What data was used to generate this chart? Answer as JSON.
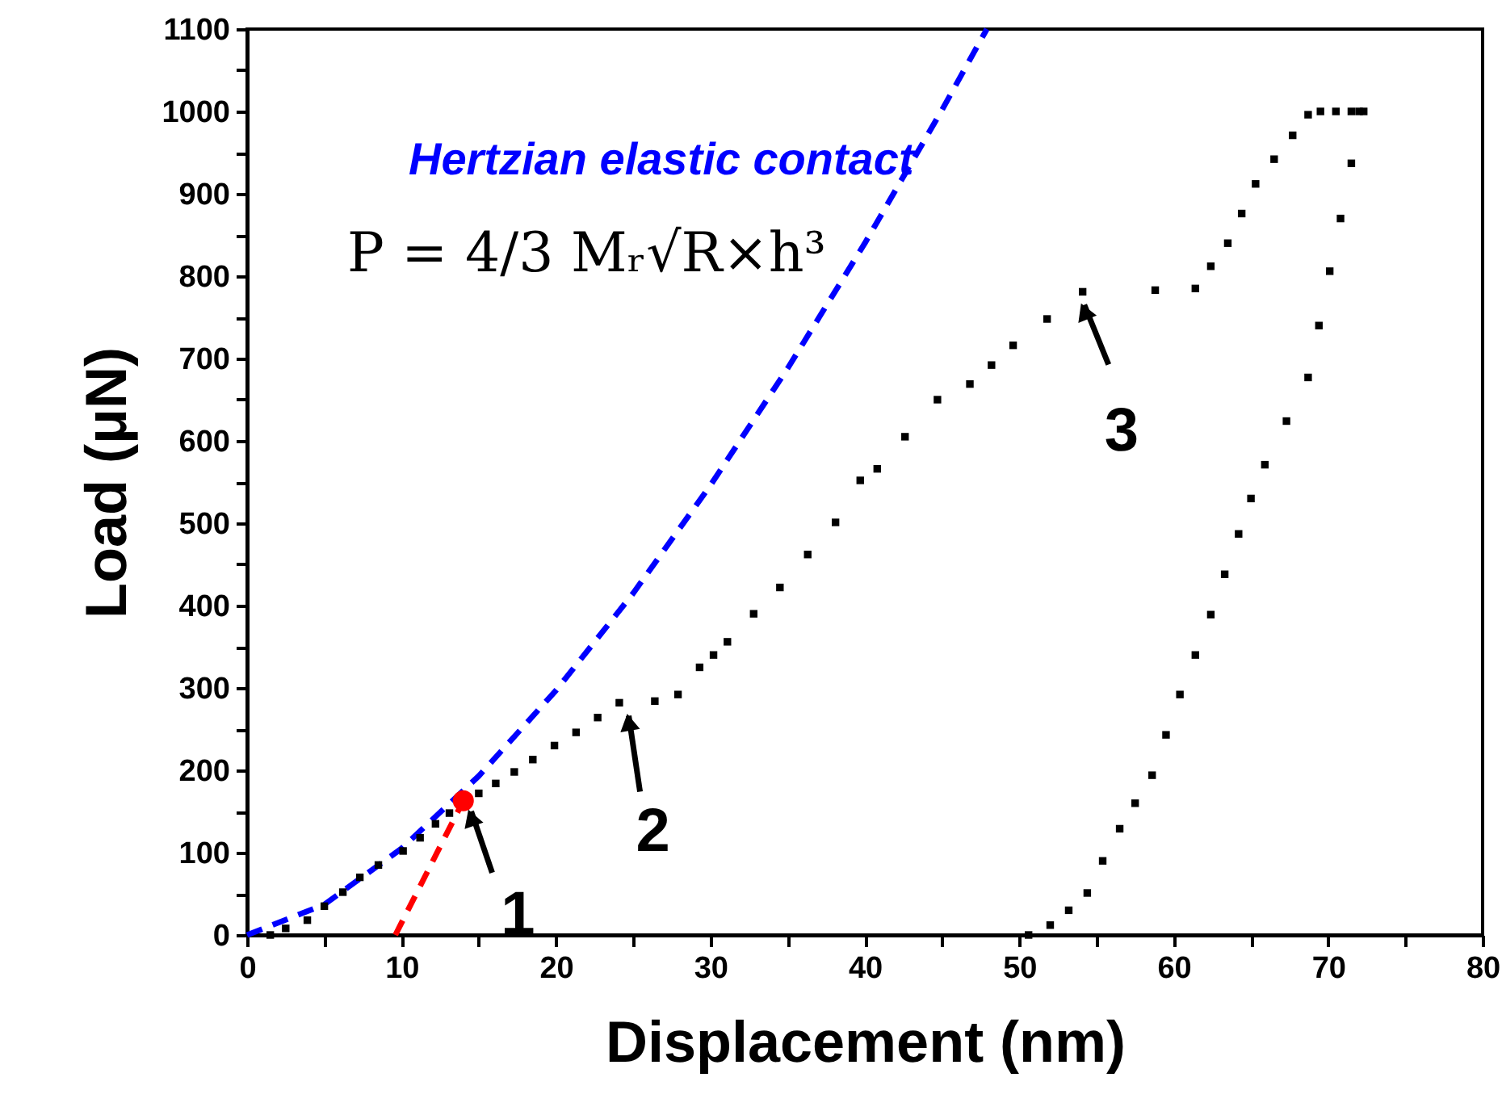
{
  "chart_data": {
    "type": "scatter",
    "xlabel": "Displacement (nm)",
    "ylabel": "Load (μN)",
    "xlim": [
      0,
      80
    ],
    "ylim": [
      0,
      1100
    ],
    "xticks": [
      0,
      {
        "value": 5,
        "label": null
      },
      10,
      {
        "value": 15,
        "label": null
      },
      20,
      {
        "value": 25,
        "label": null
      },
      30,
      {
        "value": 35,
        "label": null
      },
      40,
      {
        "value": 45,
        "label": null
      },
      50,
      {
        "value": 55,
        "label": null
      },
      60,
      {
        "value": 65,
        "label": null
      },
      70,
      {
        "value": 75,
        "label": null
      },
      80
    ],
    "yticks": [
      0,
      {
        "value": 50,
        "label": null
      },
      100,
      {
        "value": 150,
        "label": null
      },
      200,
      {
        "value": 250,
        "label": null
      },
      300,
      {
        "value": 350,
        "label": null
      },
      400,
      {
        "value": 450,
        "label": null
      },
      500,
      {
        "value": 550,
        "label": null
      },
      600,
      {
        "value": 650,
        "label": null
      },
      700,
      {
        "value": 750,
        "label": null
      },
      800,
      {
        "value": 850,
        "label": null
      },
      900,
      {
        "value": 950,
        "label": null
      },
      1000,
      {
        "value": 1050,
        "label": null
      },
      1100
    ],
    "grid": false,
    "series": [
      {
        "marker": "square",
        "color": "#000000",
        "x": [
          1.5,
          2.5,
          3.9,
          5.0,
          6.2,
          7.3,
          8.5,
          10.1,
          11.2,
          12.2,
          13.1,
          15.0,
          16.1,
          17.3,
          18.5,
          19.9,
          21.3,
          22.7,
          24.1,
          26.4,
          27.9,
          29.3,
          30.2,
          31.1,
          32.8,
          34.5,
          36.3,
          38.1,
          39.7,
          40.8,
          42.6,
          44.7,
          46.8,
          48.2,
          49.6,
          51.8,
          54.1,
          58.8,
          61.4,
          62.4,
          63.5,
          64.4,
          65.3,
          66.5,
          67.7,
          68.7,
          69.5,
          70.5,
          71.5,
          72.3
        ],
        "values": [
          0,
          8,
          18,
          35,
          52,
          70,
          85,
          102,
          118,
          135,
          148,
          172,
          184,
          198,
          213,
          230,
          246,
          264,
          282,
          284,
          292,
          325,
          340,
          356,
          390,
          422,
          462,
          501,
          552,
          566,
          605,
          650,
          669,
          692,
          716,
          748,
          781,
          783,
          785,
          812,
          840,
          876,
          912,
          942,
          971,
          996,
          1000,
          1000,
          1000,
          1000
        ]
      },
      {
        "marker": "square",
        "color": "#000000",
        "x": [
          72.0,
          71.5,
          70.8,
          70.1,
          69.4,
          68.7,
          67.3,
          65.9,
          65.0,
          64.2,
          63.3,
          62.4,
          61.4,
          60.4,
          59.5,
          58.6,
          57.5,
          56.5,
          55.4,
          54.4,
          53.2,
          52.0,
          50.6
        ],
        "values": [
          1000,
          937,
          870,
          806,
          740,
          677,
          624,
          571,
          530,
          487,
          438,
          389,
          340,
          292,
          243,
          194,
          160,
          129,
          90,
          51,
          30,
          12,
          0
        ]
      },
      {
        "type": "line",
        "line_style": "dashed",
        "color": "#0000ff",
        "x": [
          0,
          5,
          10,
          15,
          20,
          25,
          30,
          35,
          40,
          45,
          47.9
        ],
        "values": [
          0,
          37,
          105,
          193,
          297,
          415,
          546,
          688,
          840,
          1002,
          1100
        ]
      },
      {
        "type": "line",
        "line_style": "dashed",
        "color": "#ff0000",
        "x": [
          9.6,
          14.0
        ],
        "values": [
          0,
          163
        ]
      },
      {
        "marker": "circle",
        "color": "#ff0000",
        "x": [
          14.0
        ],
        "values": [
          163
        ]
      }
    ],
    "annotations": [
      "Hertzian elastic contact",
      "P = 4/3 Mᵣ√R×h³",
      {
        "text": "1",
        "x": 14.3,
        "y": 160
      },
      {
        "text": "2",
        "x": 24.5,
        "y": 276
      },
      {
        "text": "3",
        "x": 54.0,
        "y": 775
      }
    ]
  }
}
